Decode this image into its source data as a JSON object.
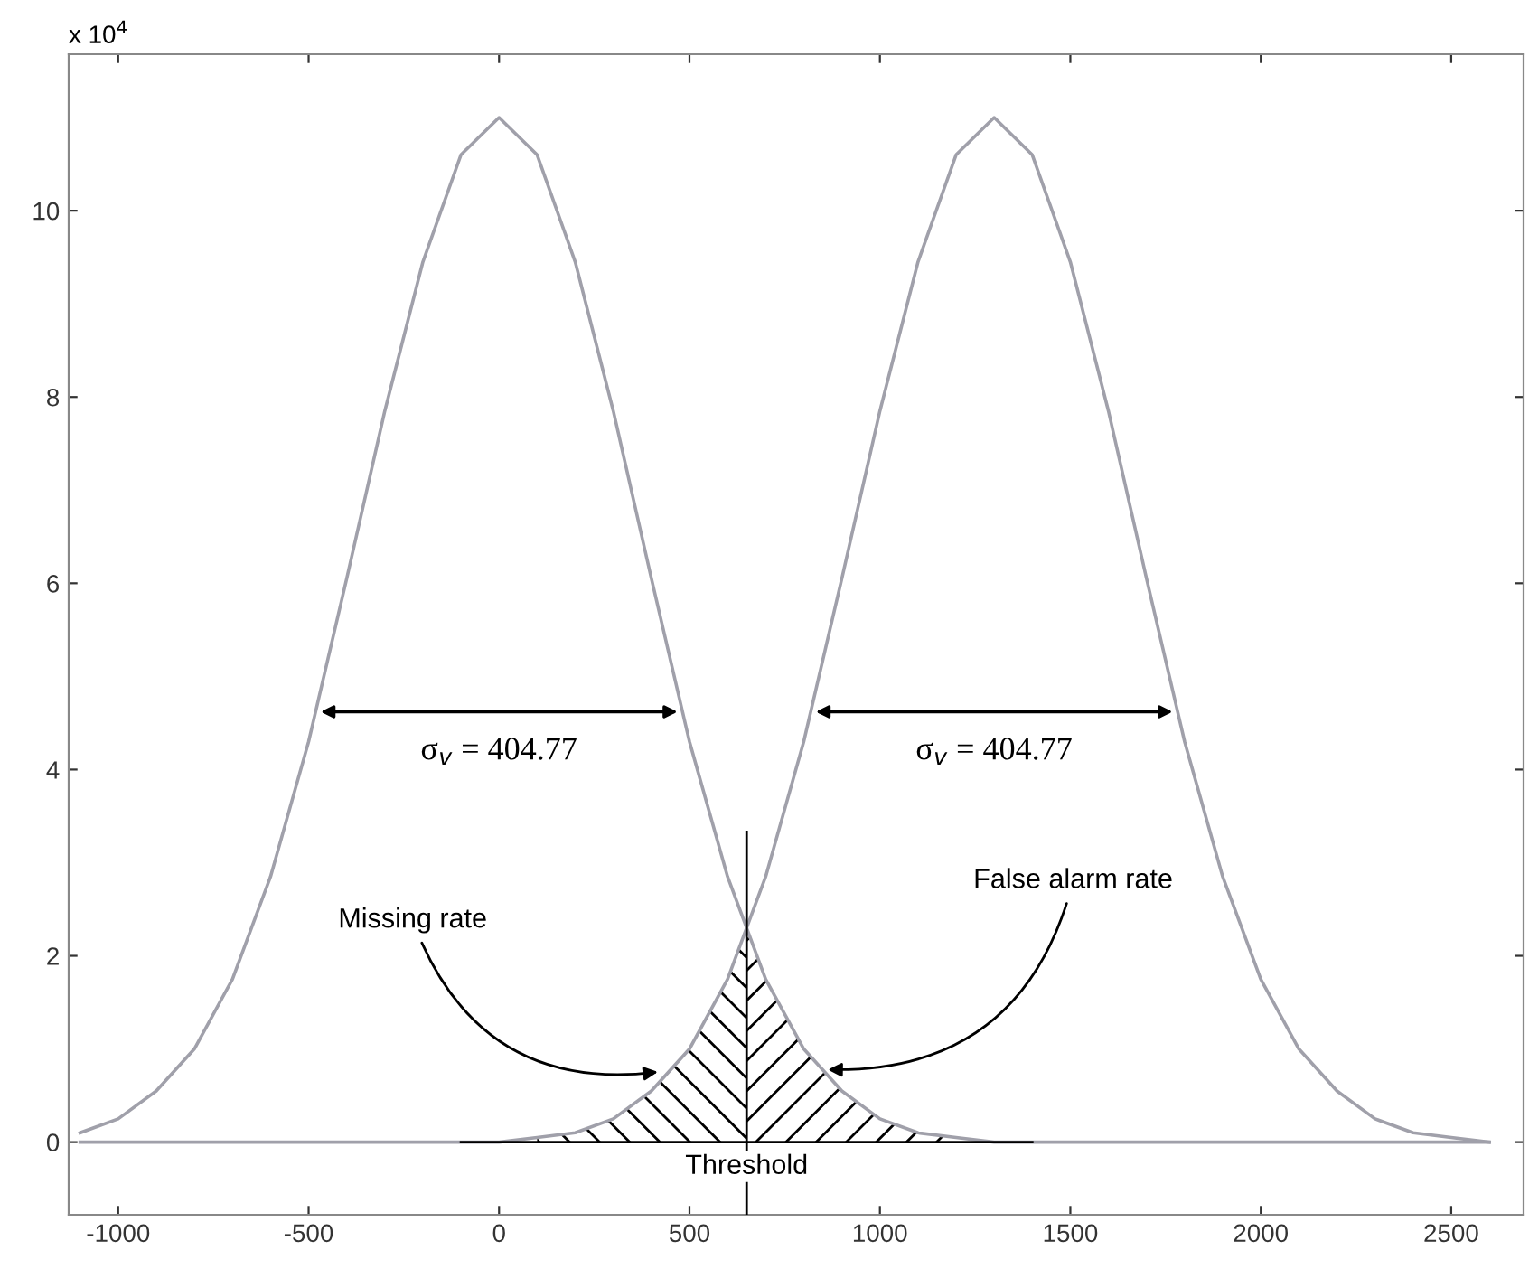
{
  "chart_data": {
    "type": "line",
    "x": [
      -1100,
      -1000,
      -900,
      -800,
      -700,
      -600,
      -500,
      -400,
      -300,
      -200,
      -100,
      0,
      100,
      200,
      300,
      400,
      500,
      600,
      700,
      800,
      900,
      1000,
      1100,
      1200,
      1300,
      1400,
      1500,
      1600,
      1700,
      1800,
      1900,
      2000,
      2100,
      2200,
      2300,
      2400,
      2500,
      2600
    ],
    "series": [
      {
        "color": "#a0a0aa",
        "values": [
          0.1,
          0.25,
          0.55,
          1.0,
          1.75,
          2.85,
          4.3,
          6.05,
          7.85,
          9.45,
          10.6,
          11.0,
          10.6,
          9.45,
          7.85,
          6.05,
          4.3,
          2.85,
          1.75,
          1.0,
          0.55,
          0.25,
          0.1,
          0.05,
          0,
          0,
          0,
          0,
          0,
          0,
          0,
          0,
          0,
          0,
          0,
          0,
          0,
          0
        ]
      },
      {
        "color": "#a0a0aa",
        "values": [
          0,
          0,
          0,
          0,
          0,
          0,
          0,
          0,
          0,
          0,
          0,
          0,
          0.05,
          0.1,
          0.25,
          0.55,
          1.0,
          1.75,
          2.85,
          4.3,
          6.05,
          7.85,
          9.45,
          10.6,
          11.0,
          10.6,
          9.45,
          7.85,
          6.05,
          4.3,
          2.85,
          1.75,
          1.0,
          0.55,
          0.25,
          0.1,
          0.05,
          0
        ]
      },
      {
        "color": "#000000",
        "x": [
          -100,
          1400
        ],
        "values": [
          0,
          0
        ]
      },
      {
        "type": "area",
        "color": "#000000",
        "x": [
          100,
          200,
          300,
          400,
          500,
          600,
          650
        ],
        "values": [
          0.05,
          0.1,
          0.25,
          0.55,
          1.0,
          1.75,
          2.25
        ]
      },
      {
        "type": "area",
        "color": "#000000",
        "x": [
          650,
          700,
          800,
          900,
          1000,
          1100,
          1200
        ],
        "values": [
          2.25,
          1.75,
          1.0,
          0.55,
          0.25,
          0.1,
          0.05
        ]
      }
    ],
    "xlim": [
      -1130,
      2690
    ],
    "ylim": [
      -0.78,
      11.68
    ],
    "xticks": [
      -1000,
      -500,
      0,
      500,
      1000,
      1500,
      2000,
      2500
    ],
    "yticks": [
      0,
      2,
      4,
      6,
      8,
      10
    ],
    "ref_lines": [
      {
        "axis": "x",
        "value": 650,
        "label": "Threshold",
        "color": "#000000"
      }
    ],
    "annotations": [
      "x 10$^{4}$",
      "σ$_{v}$ = 404.77",
      "σ$_{v}$ = 404.77",
      {
        "text": "Missing rate",
        "x": 430,
        "y": 0.76
      },
      {
        "text": "False alarm rate",
        "x": 850,
        "y": 0.78
      }
    ],
    "grid": false,
    "legend": false,
    "marker": "none",
    "line_style": "solid"
  }
}
